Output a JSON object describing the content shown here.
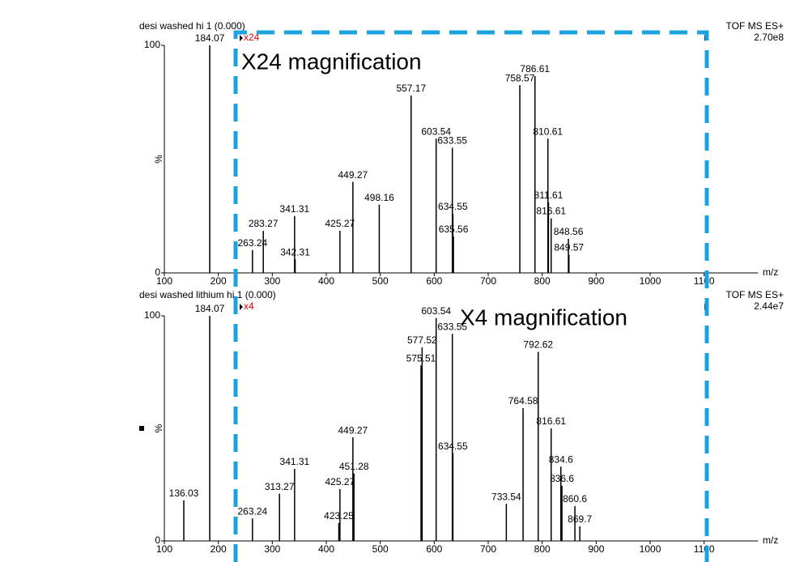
{
  "chart_data": [
    {
      "type": "stem",
      "title": "desi washed hi 1 (0.000)",
      "instrument": "TOF MS ES+",
      "intensity": "2.70e8",
      "magnification_label": "x24",
      "annotation": "X24 magnification",
      "ylabel": "%",
      "xlabel": "m/z",
      "color": "#000000",
      "x": [
        184.07,
        263.24,
        283.27,
        341.31,
        342.31,
        425.27,
        449.27,
        498.16,
        557.17,
        603.54,
        633.55,
        634.55,
        635.56,
        758.57,
        786.61,
        810.61,
        811.61,
        816.61,
        848.56,
        849.57
      ],
      "values": [
        100,
        10,
        18.5,
        25,
        6,
        18.5,
        40,
        30,
        78,
        59,
        55,
        26,
        16,
        82.5,
        86.5,
        59,
        31,
        24,
        15,
        8
      ],
      "xlim": [
        95,
        1200
      ],
      "xticks": [
        100,
        200,
        300,
        400,
        500,
        600,
        700,
        800,
        900,
        1000,
        1100
      ],
      "ylim": [
        0,
        100
      ],
      "yticks": [
        0,
        100
      ]
    },
    {
      "type": "stem",
      "title": "desi washed lithium hi 1 (0.000)",
      "instrument": "TOF MS ES+",
      "intensity": "2.44e7",
      "magnification_label": "x4",
      "annotation": "X4 magnification",
      "ylabel": "%",
      "xlabel": "m/z",
      "color": "#000000",
      "x": [
        136.03,
        184.07,
        263.24,
        313.27,
        341.31,
        423.25,
        425.27,
        449.27,
        451.28,
        575.51,
        577.52,
        603.54,
        633.55,
        634.55,
        733.54,
        764.58,
        792.62,
        816.61,
        834.6,
        836.6,
        860.6,
        869.7
      ],
      "values": [
        18,
        100,
        10,
        21,
        32,
        8,
        23,
        46,
        30,
        78,
        86,
        99,
        92,
        39,
        16.5,
        59,
        84,
        50,
        33,
        24.5,
        15.5,
        6.5
      ],
      "xlim": [
        95,
        1200
      ],
      "xticks": [
        100,
        200,
        300,
        400,
        500,
        600,
        700,
        800,
        900,
        1000,
        1100
      ],
      "ylim": [
        0,
        100
      ],
      "yticks": [
        0,
        100
      ]
    }
  ]
}
